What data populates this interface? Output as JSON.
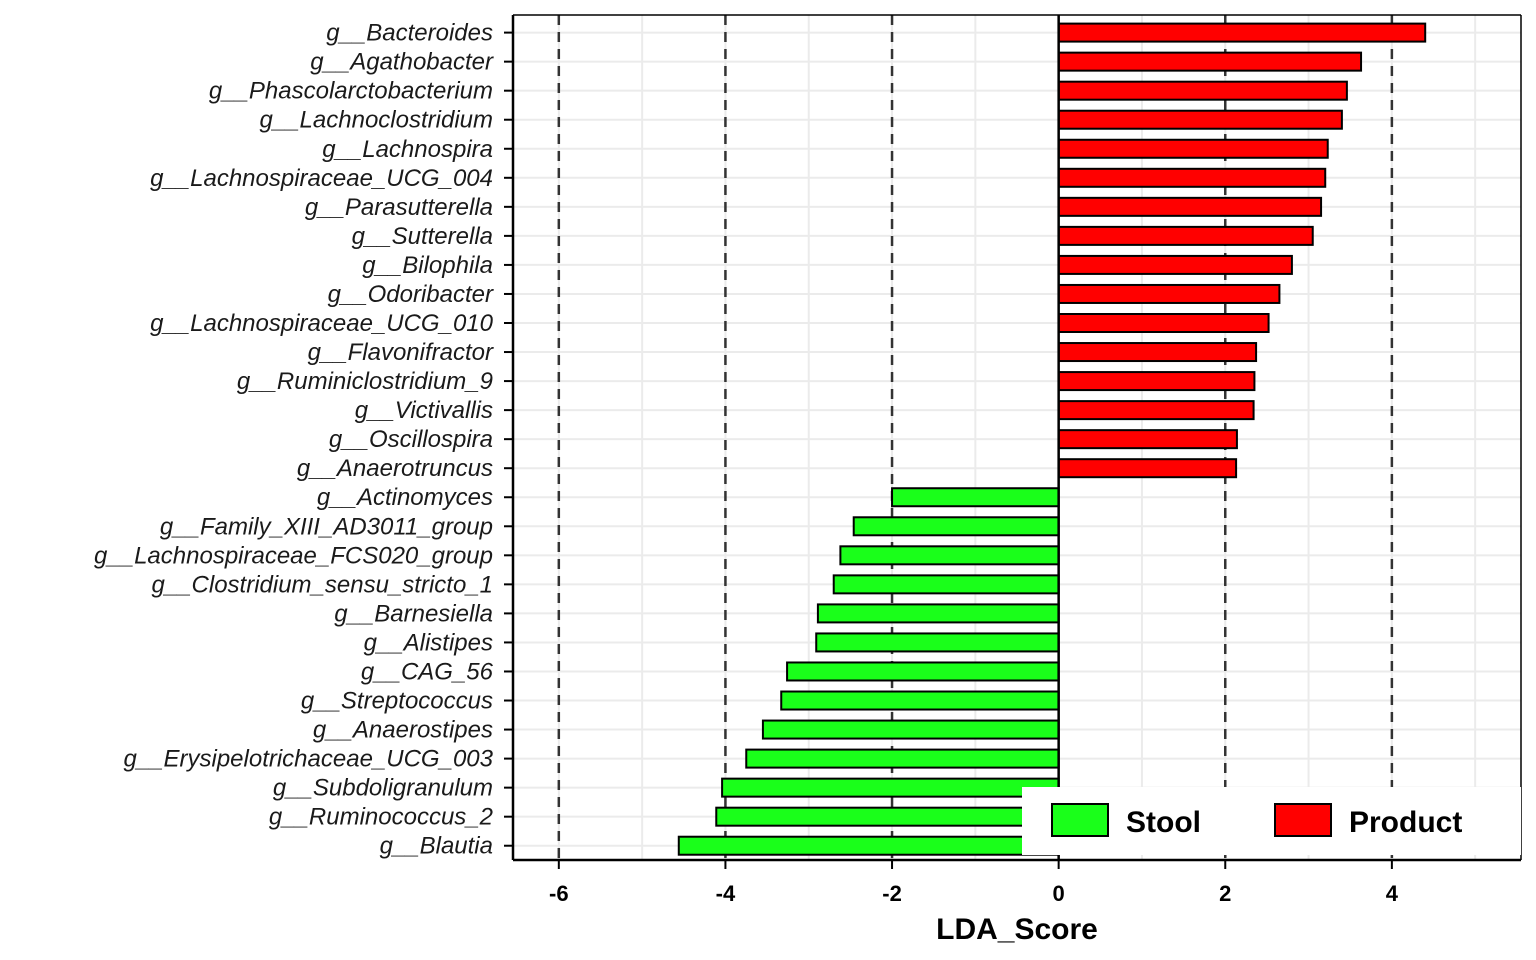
{
  "chart_data": {
    "type": "bar",
    "orientation": "horizontal",
    "xlabel": "LDA_Score",
    "ylabel": "",
    "xlim": [
      -6.55,
      5.55
    ],
    "x_ticks": [
      "-6",
      "-4",
      "-2",
      "0",
      "2",
      "4"
    ],
    "dashed_reference_lines": [
      -6,
      -4,
      -2,
      2,
      4
    ],
    "grid": true,
    "legend_position": "bottom-right",
    "colors": {
      "Stool": "#1aff1a",
      "Product": "#ff0000"
    },
    "legend": [
      "Stool",
      "Product"
    ],
    "categories": [
      "g__Bacteroides",
      "g__Agathobacter",
      "g__Phascolarctobacterium",
      "g__Lachnoclostridium",
      "g__Lachnospira",
      "g__Lachnospiraceae_UCG_004",
      "g__Parasutterella",
      "g__Sutterella",
      "g__Bilophila",
      "g__Odoribacter",
      "g__Lachnospiraceae_UCG_010",
      "g__Flavonifractor",
      "g__Ruminiclostridium_9",
      "g__Victivallis",
      "g__Oscillospira",
      "g__Anaerotruncus",
      "g__Actinomyces",
      "g__Family_XIII_AD3011_group",
      "g__Lachnospiraceae_FCS020_group",
      "g__Clostridium_sensu_stricto_1",
      "g__Barnesiella",
      "g__Alistipes",
      "g__CAG_56",
      "g__Streptococcus",
      "g__Anaerostipes",
      "g__Erysipelotrichaceae_UCG_003",
      "g__Subdoligranulum",
      "g__Ruminococcus_2",
      "g__Blautia"
    ],
    "values": [
      4.4,
      3.63,
      3.46,
      3.4,
      3.23,
      3.2,
      3.15,
      3.05,
      2.8,
      2.65,
      2.52,
      2.37,
      2.35,
      2.34,
      2.14,
      2.13,
      -2.0,
      -2.46,
      -2.62,
      -2.7,
      -2.89,
      -2.91,
      -3.26,
      -3.33,
      -3.55,
      -3.75,
      -4.04,
      -4.11,
      -4.56
    ],
    "groups": [
      "Product",
      "Product",
      "Product",
      "Product",
      "Product",
      "Product",
      "Product",
      "Product",
      "Product",
      "Product",
      "Product",
      "Product",
      "Product",
      "Product",
      "Product",
      "Product",
      "Stool",
      "Stool",
      "Stool",
      "Stool",
      "Stool",
      "Stool",
      "Stool",
      "Stool",
      "Stool",
      "Stool",
      "Stool",
      "Stool",
      "Stool"
    ]
  }
}
